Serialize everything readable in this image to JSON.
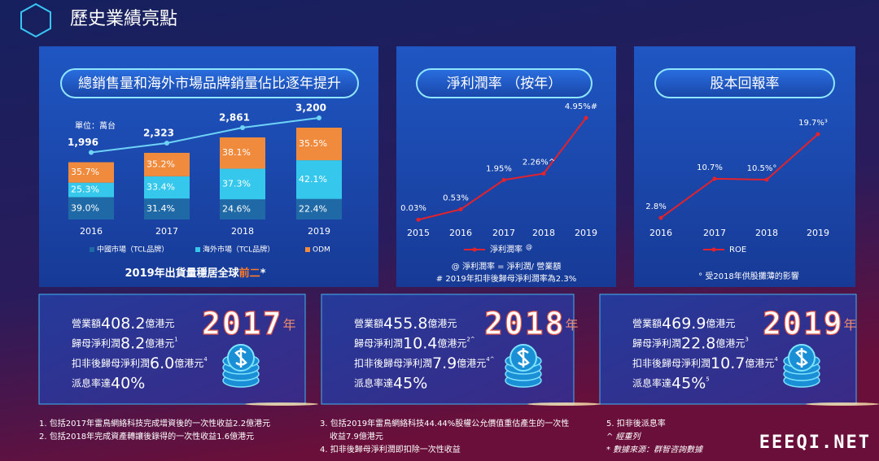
{
  "header": {
    "title": "歷史業績亮點"
  },
  "chart_data": [
    {
      "type": "stacked_bar",
      "title": "總銷售量和海外市場品牌銷量佔比逐年提升",
      "unit_label": "單位：萬台",
      "categories": [
        "2016",
        "2017",
        "2018",
        "2019"
      ],
      "series": [
        {
          "name": "中國市場（TCL品牌）",
          "color": "#1f6aa6",
          "values": [
            39.0,
            31.4,
            24.6,
            22.4
          ],
          "value_labels": [
            "39.0%",
            "31.4%",
            "24.6%",
            "22.4%"
          ]
        },
        {
          "name": "海外市場（TCL品牌）",
          "color": "#35c8ec",
          "values": [
            25.3,
            33.4,
            37.3,
            42.1
          ],
          "value_labels": [
            "25.3%",
            "33.4%",
            "37.3%",
            "42.1%"
          ]
        },
        {
          "name": "ODM",
          "color": "#f08a3c",
          "values": [
            35.7,
            35.2,
            38.1,
            35.5
          ],
          "value_labels": [
            "35.7%",
            "35.2%",
            "38.1%",
            "35.5%"
          ]
        }
      ],
      "totals": {
        "color": "#6fd3f7",
        "label_color": "#ff2b2b",
        "values": [
          1996,
          2323,
          2861,
          3200
        ],
        "value_labels": [
          "1,996",
          "2,323",
          "2,861",
          "3,200"
        ]
      },
      "note": {
        "parts": [
          "2019年出貨量穩居全球",
          "前二",
          "*"
        ],
        "highlight_color": "#ff7a2a"
      }
    },
    {
      "type": "line",
      "title": "淨利潤率 （按年）",
      "categories": [
        "2015",
        "2016",
        "2017",
        "2018",
        "2019"
      ],
      "series": [
        {
          "name": "淨利潤率",
          "name_mark": "@",
          "color": "#e3222c",
          "values": [
            0.03,
            0.53,
            1.95,
            2.26,
            4.95
          ],
          "value_labels": [
            "0.03%",
            "0.53%",
            "1.95%",
            "2.26%^",
            "4.95%#"
          ]
        }
      ],
      "notes": [
        "@ 淨利潤率 = 淨利潤/ 營業額",
        "# 2019年扣非後歸母淨利潤率為2.3%"
      ]
    },
    {
      "type": "line",
      "title": "股本回報率",
      "categories": [
        "2016",
        "2017",
        "2018",
        "2019"
      ],
      "series": [
        {
          "name": "ROE",
          "color": "#e3222c",
          "values": [
            2.8,
            10.7,
            10.5,
            19.7
          ],
          "value_labels": [
            "2.8%",
            "10.7%",
            "10.5%°",
            "19.7%³"
          ]
        }
      ],
      "notes": [
        "° 受2018年供股攤薄的影響"
      ]
    }
  ],
  "cards": [
    {
      "year": "2017",
      "year_suffix": "年",
      "rows": [
        {
          "label": "營業額",
          "value": "408.2",
          "unit": "億港元"
        },
        {
          "label": "歸母淨利潤",
          "value": "8.2",
          "unit": "億港元",
          "note": "1"
        },
        {
          "label": "扣非後歸母淨利潤",
          "value": "6.0",
          "unit": "億港元",
          "note": "4"
        },
        {
          "label": "派息率達",
          "value": "40%"
        }
      ]
    },
    {
      "year": "2018",
      "year_suffix": "年",
      "rows": [
        {
          "label": "營業額",
          "value": "455.8",
          "unit": "億港元"
        },
        {
          "label": "歸母淨利潤",
          "value": "10.4",
          "unit": "億港元",
          "note": "2^"
        },
        {
          "label": "扣非後歸母淨利潤",
          "value": "7.9",
          "unit": "億港元",
          "note": "4^"
        },
        {
          "label": "派息率達",
          "value": "45%"
        }
      ]
    },
    {
      "year": "2019",
      "year_suffix": "年",
      "rows": [
        {
          "label": "營業額",
          "value": "469.9",
          "unit": "億港元"
        },
        {
          "label": "歸母淨利潤",
          "value": "22.8",
          "unit": "億港元",
          "note": "3"
        },
        {
          "label": "扣非後歸母淨利潤",
          "value": "10.7",
          "unit": "億港元",
          "note": "4"
        },
        {
          "label": "派息率達",
          "value": "45%",
          "note": "5"
        }
      ]
    }
  ],
  "footnotes": [
    [
      "1. 包括2017年雷鳥網絡科技完成增資後的一次性收益2.2億港元"
    ],
    [
      "2. 包括2018年完成資產轉讓後錄得的一次性收益1.6億港元"
    ],
    [
      "3. 包括2019年雷鳥網絡科技44.44%股權公允價值重估產生的一次性",
      "收益7.9億港元"
    ],
    [
      "4. 扣非後歸母淨利潤即扣除一次性收益"
    ],
    [
      "5. 扣非後派息率"
    ],
    [
      "^ 經重列"
    ],
    [
      "* 數據來源：群智咨詢數據"
    ]
  ],
  "watermark": "EEEQI.NET"
}
